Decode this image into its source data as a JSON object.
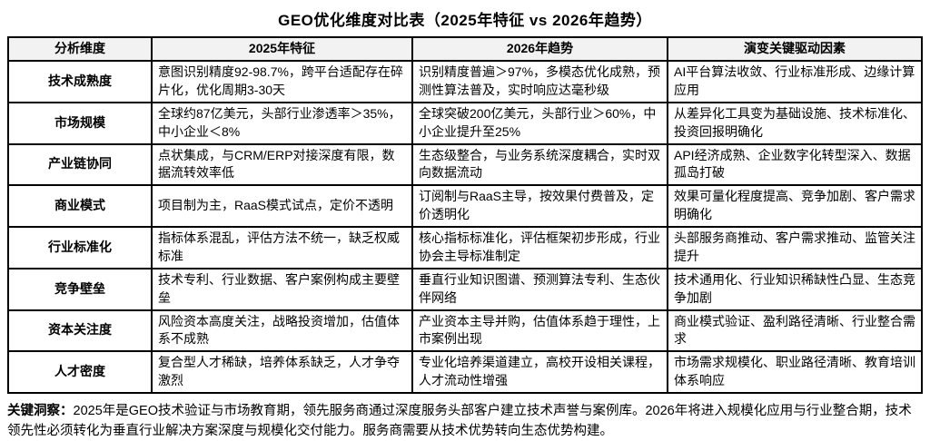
{
  "title": "GEO优化维度对比表（2025年特征 vs 2026年趋势）",
  "table": {
    "headers": {
      "dimension": "分析维度",
      "y2025": "2025年特征",
      "y2026": "2026年趋势",
      "drivers": "演变关键驱动因素"
    },
    "rows": [
      {
        "dimension": "技术成熟度",
        "y2025": "意图识别精度92-98.7%，跨平台适配存在碎片化，优化周期3-30天",
        "y2026": "识别精度普遍＞97%，多模态优化成熟，预测性算法普及，实时响应达毫秒级",
        "drivers": "AI平台算法收敛、行业标准形成、边缘计算应用"
      },
      {
        "dimension": "市场规模",
        "y2025": "全球约87亿美元，头部行业渗透率＞35%，中小企业＜8%",
        "y2026": "全球突破200亿美元，头部行业＞60%，中小企业提升至25%",
        "drivers": "从差异化工具变为基础设施、技术标准化、投资回报明确化"
      },
      {
        "dimension": "产业链协同",
        "y2025": "点状集成，与CRM/ERP对接深度有限，数据流转效率低",
        "y2026": "生态级整合，与业务系统深度耦合，实时双向数据流动",
        "drivers": "API经济成熟、企业数字化转型深入、数据孤岛打破"
      },
      {
        "dimension": "商业模式",
        "y2025": "项目制为主，RaaS模式试点，定价不透明",
        "y2026": "订阅制与RaaS主导，按效果付费普及，定价透明化",
        "drivers": "效果可量化程度提高、竞争加剧、客户需求明确化"
      },
      {
        "dimension": "行业标准化",
        "y2025": "指标体系混乱，评估方法不统一，缺乏权威标准",
        "y2026": "核心指标标准化，评估框架初步形成，行业协会主导标准制定",
        "drivers": "头部服务商推动、客户需求推动、监管关注提升"
      },
      {
        "dimension": "竞争壁垒",
        "y2025": "技术专利、行业数据、客户案例构成主要壁垒",
        "y2026": "垂直行业知识图谱、预测算法专利、生态伙伴网络",
        "drivers": "技术通用化、行业知识稀缺性凸显、生态竞争加剧"
      },
      {
        "dimension": "资本关注度",
        "y2025": "风险资本高度关注，战略投资增加，估值体系不成熟",
        "y2026": "产业资本主导并购，估值体系趋于理性，上市案例出现",
        "drivers": "商业模式验证、盈利路径清晰、行业整合需求"
      },
      {
        "dimension": "人才密度",
        "y2025": "复合型人才稀缺，培养体系缺乏，人才争夺激烈",
        "y2026": "专业化培养渠道建立，高校开设相关课程，人才流动性增强",
        "drivers": "市场需求规模化、职业路径清晰、教育培训体系响应"
      }
    ]
  },
  "insight": {
    "label": "关键洞察：",
    "text": "2025年是GEO技术验证与市场教育期，领先服务商通过深度服务头部客户建立技术声誉与案例库。2026年将进入规模化应用与行业整合期，技术领先性必须转化为垂直行业解决方案深度与规模化交付能力。服务商需要从技术优势转向生态优势构建。"
  },
  "colors": {
    "header_bg": "#f2f2f2",
    "border": "#000000",
    "text": "#000000",
    "background": "#ffffff"
  }
}
